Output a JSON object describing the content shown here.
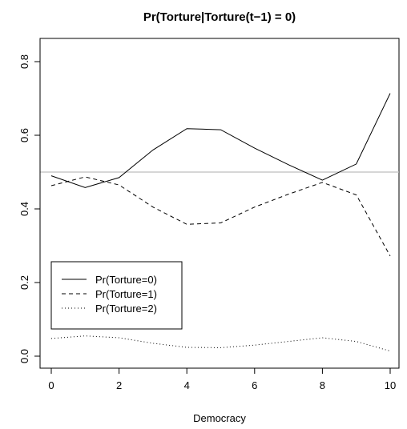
{
  "chart_data": {
    "type": "line",
    "title": "Pr(Torture|Torture(t−1) = 0)",
    "xlabel": "Democracy",
    "ylabel": "",
    "xlim": [
      0,
      10
    ],
    "ylim": [
      0,
      0.8
    ],
    "x_ticks": [
      0,
      2,
      4,
      6,
      8,
      10
    ],
    "x_tick_labels": [
      "0",
      "2",
      "4",
      "6",
      "8",
      "10"
    ],
    "y_ticks": [
      0.0,
      0.2,
      0.4,
      0.6,
      0.8
    ],
    "y_tick_labels": [
      "0.0",
      "0.2",
      "0.4",
      "0.6",
      "0.8"
    ],
    "grid": false,
    "legend_position": "bottom-left",
    "reference_line": {
      "y": 0.5,
      "color": "#bebebe"
    },
    "x": [
      0,
      1,
      2,
      3,
      4,
      5,
      6,
      7,
      8,
      9,
      10
    ],
    "series": [
      {
        "name": "Pr(Torture=0)",
        "style": "solid",
        "color": "#000000",
        "values": [
          0.49,
          0.458,
          0.485,
          0.56,
          0.618,
          0.615,
          0.565,
          0.52,
          0.478,
          0.522,
          0.714
        ]
      },
      {
        "name": "Pr(Torture=1)",
        "style": "dashed",
        "color": "#000000",
        "values": [
          0.463,
          0.487,
          0.465,
          0.405,
          0.358,
          0.362,
          0.405,
          0.44,
          0.472,
          0.438,
          0.272
        ]
      },
      {
        "name": "Pr(Torture=2)",
        "style": "dotted",
        "color": "#000000",
        "values": [
          0.048,
          0.055,
          0.05,
          0.035,
          0.024,
          0.023,
          0.03,
          0.04,
          0.05,
          0.04,
          0.014
        ]
      }
    ]
  }
}
